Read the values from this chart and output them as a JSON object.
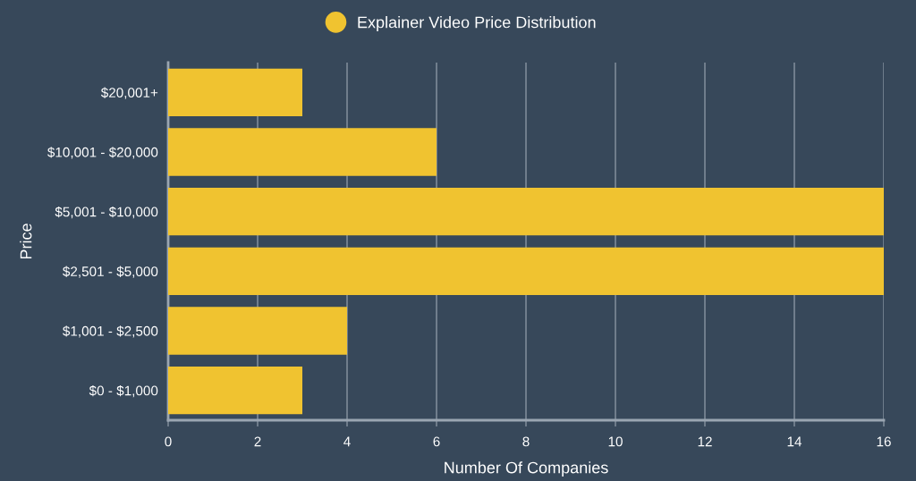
{
  "chart_data": {
    "type": "bar",
    "orientation": "horizontal",
    "categories": [
      "$20,001+",
      "$10,001 - $20,000",
      "$5,001 - $10,000",
      "$2,501 - $5,000",
      "$1,001 - $2,500",
      "$0 - $1,000"
    ],
    "series": [
      {
        "name": "Explainer Video Price Distribution",
        "color": "#f0c330",
        "values": [
          3,
          6,
          16,
          16,
          4,
          3
        ]
      }
    ],
    "xlim": [
      0,
      16
    ],
    "xticks": [
      0,
      2,
      4,
      6,
      8,
      10,
      12,
      14,
      16
    ],
    "xlabel": "Number Of Companies",
    "ylabel": "Price",
    "grid": "x",
    "legend": "top"
  }
}
